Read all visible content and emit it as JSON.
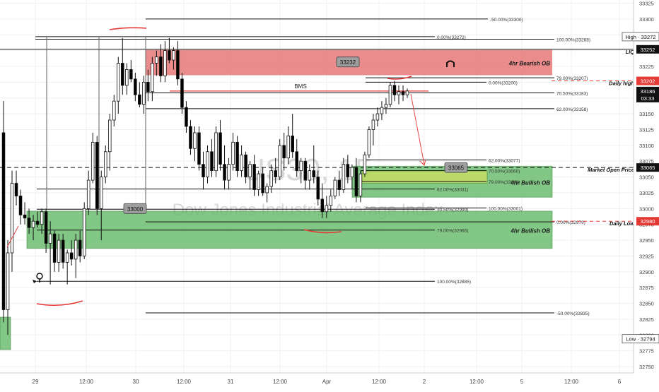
{
  "chart_data": {
    "type": "candlestick",
    "symbol_watermark": "US30, 15",
    "watermark_subtitle": "Dow Jones Industrial Average Index",
    "ylim": [
      32740,
      33330
    ],
    "y_ticks": [
      32750,
      32775,
      32800,
      32825,
      32850,
      32875,
      32900,
      32925,
      32950,
      32975,
      33000,
      33025,
      33050,
      33075,
      33100,
      33125,
      33150,
      33175,
      33200,
      33225,
      33250,
      33275,
      33300,
      33325
    ],
    "x_ticks": [
      "29",
      "12:00",
      "30",
      "12:00",
      "31",
      "12:00",
      "Apr",
      "12:00",
      "2",
      "12:00",
      "5",
      "12:00",
      "6"
    ],
    "colors": {
      "bull": "#ffffff",
      "bear": "#000000",
      "bearish_ob_fill": "#e57373",
      "bullish_ob_fill": "#66bb6a",
      "inner_zone_fill": "#c7dd63",
      "red_line": "#e53935",
      "price_label_bg": "#ffffff"
    },
    "price_axis_labels": [
      {
        "price": 33272,
        "text": "High · 33272",
        "style": "light"
      },
      {
        "price": 33252,
        "text": "33252",
        "style": "dark"
      },
      {
        "price": 33202,
        "text": "33202",
        "style": "red"
      },
      {
        "price": 33186,
        "text": "33186",
        "sub": "03:33",
        "style": "dark"
      },
      {
        "price": 33065,
        "text": "33065",
        "style": "dark"
      },
      {
        "price": 32980,
        "text": "32980",
        "style": "red"
      },
      {
        "price": 32794,
        "text": "Low · 32794",
        "style": "light"
      }
    ],
    "zones": [
      {
        "label": "4hr Bearish OB",
        "top": 33251,
        "bottom": 33211,
        "kind": "bearish"
      },
      {
        "label": "4hr Bullish OB",
        "top": 33067,
        "bottom": 33018,
        "kind": "bullish"
      },
      {
        "label": "4hr Bullish OB",
        "top": 32996,
        "bottom": 32937,
        "kind": "bullish"
      },
      {
        "label": "",
        "top": 33060,
        "bottom": 33040,
        "kind": "inner"
      }
    ],
    "fib_labels": [
      {
        "price": 33300,
        "text": "-50.00%(33300)"
      },
      {
        "price": 33272,
        "text": "0.00%(33272)"
      },
      {
        "price": 33268,
        "text": "100.00%(33268)"
      },
      {
        "price": 33207,
        "text": "79.00%(33207)"
      },
      {
        "price": 33200,
        "text": "0.00%(33200)"
      },
      {
        "price": 33183,
        "text": "70.50%(33183)"
      },
      {
        "price": 33158,
        "text": "62.00%(33158)"
      },
      {
        "price": 33077,
        "text": "62.00%(33077)"
      },
      {
        "price": 33060,
        "text": "70.50%(33060)"
      },
      {
        "price": 33043,
        "text": "79.00%(33043)"
      },
      {
        "price": 33031,
        "text": "62.00%(33031)"
      },
      {
        "price": 33001,
        "text": "100.00%(33001)"
      },
      {
        "price": 32999,
        "text": "70.50%(32999)"
      },
      {
        "price": 32979,
        "text": "0.00%(32979)"
      },
      {
        "price": 32966,
        "text": "79.00%(32966)"
      },
      {
        "price": 32885,
        "text": "100.00%(32885)"
      },
      {
        "price": 32835,
        "text": "-50.00%(32835)"
      }
    ],
    "level_tags": [
      {
        "text": "LIQ",
        "price": 33252
      },
      {
        "text": "Daily high",
        "price": 33202
      },
      {
        "text": "Market Open Price",
        "price": 33065
      },
      {
        "text": "Daily Low",
        "price": 32980
      }
    ],
    "callouts": [
      {
        "text": "33232",
        "price": 33232
      },
      {
        "text": "33065",
        "price": 33065
      },
      {
        "text": "33000",
        "price": 33000
      }
    ],
    "annotations": [
      "BMS"
    ],
    "candles": [
      {
        "o": 33120,
        "h": 33170,
        "l": 32820,
        "c": 32840
      },
      {
        "o": 32840,
        "h": 32950,
        "l": 32800,
        "c": 32930
      },
      {
        "o": 32930,
        "h": 33060,
        "l": 32900,
        "c": 33040
      },
      {
        "o": 33040,
        "h": 33060,
        "l": 33005,
        "c": 33020
      },
      {
        "o": 33020,
        "h": 33030,
        "l": 32975,
        "c": 32990
      },
      {
        "o": 32990,
        "h": 33010,
        "l": 32975,
        "c": 32985
      },
      {
        "o": 32985,
        "h": 33000,
        "l": 32960,
        "c": 32970
      },
      {
        "o": 32970,
        "h": 32990,
        "l": 32950,
        "c": 32980
      },
      {
        "o": 32980,
        "h": 32995,
        "l": 32970,
        "c": 32975
      },
      {
        "o": 32975,
        "h": 33000,
        "l": 32960,
        "c": 32995
      },
      {
        "o": 32995,
        "h": 33000,
        "l": 32930,
        "c": 32945
      },
      {
        "o": 32945,
        "h": 32980,
        "l": 32880,
        "c": 32960
      },
      {
        "o": 32960,
        "h": 32965,
        "l": 32900,
        "c": 32915
      },
      {
        "o": 32915,
        "h": 32960,
        "l": 32900,
        "c": 32950
      },
      {
        "o": 32950,
        "h": 32960,
        "l": 32905,
        "c": 32915
      },
      {
        "o": 32915,
        "h": 32935,
        "l": 32880,
        "c": 32930
      },
      {
        "o": 32930,
        "h": 32950,
        "l": 32910,
        "c": 32920
      },
      {
        "o": 32920,
        "h": 32960,
        "l": 32890,
        "c": 32950
      },
      {
        "o": 32950,
        "h": 32965,
        "l": 32915,
        "c": 32925
      },
      {
        "o": 32925,
        "h": 33010,
        "l": 32920,
        "c": 33000
      },
      {
        "o": 33000,
        "h": 33060,
        "l": 32990,
        "c": 33045
      },
      {
        "o": 33045,
        "h": 33120,
        "l": 33040,
        "c": 33105
      },
      {
        "o": 33105,
        "h": 33115,
        "l": 32990,
        "c": 33000
      },
      {
        "o": 33000,
        "h": 33060,
        "l": 32950,
        "c": 33050
      },
      {
        "o": 33050,
        "h": 33100,
        "l": 33040,
        "c": 33090
      },
      {
        "o": 33090,
        "h": 33150,
        "l": 33060,
        "c": 33140
      },
      {
        "o": 33140,
        "h": 33180,
        "l": 33130,
        "c": 33170
      },
      {
        "o": 33170,
        "h": 33240,
        "l": 33150,
        "c": 33230
      },
      {
        "o": 33230,
        "h": 33270,
        "l": 33180,
        "c": 33195
      },
      {
        "o": 33195,
        "h": 33230,
        "l": 33180,
        "c": 33220
      },
      {
        "o": 33220,
        "h": 33235,
        "l": 33200,
        "c": 33205
      },
      {
        "o": 33205,
        "h": 33215,
        "l": 33170,
        "c": 33180
      },
      {
        "o": 33180,
        "h": 33200,
        "l": 33160,
        "c": 33165
      },
      {
        "o": 33165,
        "h": 33210,
        "l": 33150,
        "c": 33200
      },
      {
        "o": 33200,
        "h": 33220,
        "l": 33170,
        "c": 33185
      },
      {
        "o": 33185,
        "h": 33240,
        "l": 33170,
        "c": 33230
      },
      {
        "o": 33230,
        "h": 33250,
        "l": 33210,
        "c": 33240
      },
      {
        "o": 33240,
        "h": 33260,
        "l": 33200,
        "c": 33210
      },
      {
        "o": 33210,
        "h": 33265,
        "l": 33200,
        "c": 33250
      },
      {
        "o": 33250,
        "h": 33270,
        "l": 33230,
        "c": 33235
      },
      {
        "o": 33235,
        "h": 33255,
        "l": 33220,
        "c": 33250
      },
      {
        "o": 33250,
        "h": 33265,
        "l": 33195,
        "c": 33205
      },
      {
        "o": 33205,
        "h": 33215,
        "l": 33150,
        "c": 33160
      },
      {
        "o": 33160,
        "h": 33170,
        "l": 33120,
        "c": 33130
      },
      {
        "o": 33130,
        "h": 33140,
        "l": 33085,
        "c": 33095
      },
      {
        "o": 33095,
        "h": 33130,
        "l": 33075,
        "c": 33120
      },
      {
        "o": 33120,
        "h": 33130,
        "l": 33060,
        "c": 33070
      },
      {
        "o": 33070,
        "h": 33090,
        "l": 33030,
        "c": 33050
      },
      {
        "o": 33050,
        "h": 33100,
        "l": 33040,
        "c": 33090
      },
      {
        "o": 33090,
        "h": 33110,
        "l": 33050,
        "c": 33060
      },
      {
        "o": 33060,
        "h": 33130,
        "l": 33050,
        "c": 33120
      },
      {
        "o": 33120,
        "h": 33140,
        "l": 33060,
        "c": 33070
      },
      {
        "o": 33070,
        "h": 33100,
        "l": 33030,
        "c": 33045
      },
      {
        "o": 33045,
        "h": 33080,
        "l": 33030,
        "c": 33070
      },
      {
        "o": 33070,
        "h": 33120,
        "l": 33060,
        "c": 33105
      },
      {
        "o": 33105,
        "h": 33115,
        "l": 33050,
        "c": 33060
      },
      {
        "o": 33060,
        "h": 33100,
        "l": 33050,
        "c": 33085
      },
      {
        "o": 33085,
        "h": 33090,
        "l": 33040,
        "c": 33050
      },
      {
        "o": 33050,
        "h": 33075,
        "l": 33030,
        "c": 33070
      },
      {
        "o": 33070,
        "h": 33085,
        "l": 33020,
        "c": 33030
      },
      {
        "o": 33030,
        "h": 33060,
        "l": 33020,
        "c": 33055
      },
      {
        "o": 33055,
        "h": 33065,
        "l": 33020,
        "c": 33025
      },
      {
        "o": 33025,
        "h": 33040,
        "l": 33010,
        "c": 33035
      },
      {
        "o": 33035,
        "h": 33070,
        "l": 33025,
        "c": 33060
      },
      {
        "o": 33060,
        "h": 33080,
        "l": 33040,
        "c": 33050
      },
      {
        "o": 33050,
        "h": 33110,
        "l": 33045,
        "c": 33100
      },
      {
        "o": 33100,
        "h": 33120,
        "l": 33060,
        "c": 33080
      },
      {
        "o": 33080,
        "h": 33130,
        "l": 33070,
        "c": 33115
      },
      {
        "o": 33115,
        "h": 33150,
        "l": 33080,
        "c": 33090
      },
      {
        "o": 33090,
        "h": 33110,
        "l": 33050,
        "c": 33060
      },
      {
        "o": 33060,
        "h": 33080,
        "l": 33040,
        "c": 33075
      },
      {
        "o": 33075,
        "h": 33080,
        "l": 33030,
        "c": 33045
      },
      {
        "o": 33045,
        "h": 33070,
        "l": 33030,
        "c": 33060
      },
      {
        "o": 33060,
        "h": 33100,
        "l": 33040,
        "c": 33050
      },
      {
        "o": 33050,
        "h": 33060,
        "l": 33005,
        "c": 33015
      },
      {
        "o": 33015,
        "h": 33040,
        "l": 32985,
        "c": 32995
      },
      {
        "o": 32995,
        "h": 33020,
        "l": 32985,
        "c": 33005
      },
      {
        "o": 33005,
        "h": 33030,
        "l": 32995,
        "c": 33020
      },
      {
        "o": 33020,
        "h": 33050,
        "l": 33015,
        "c": 33045
      },
      {
        "o": 33045,
        "h": 33060,
        "l": 33020,
        "c": 33030
      },
      {
        "o": 33030,
        "h": 33080,
        "l": 33025,
        "c": 33070
      },
      {
        "o": 33070,
        "h": 33085,
        "l": 33040,
        "c": 33050
      },
      {
        "o": 33050,
        "h": 33070,
        "l": 33030,
        "c": 33065
      },
      {
        "o": 33065,
        "h": 33080,
        "l": 33010,
        "c": 33020
      },
      {
        "o": 33020,
        "h": 33060,
        "l": 33010,
        "c": 33055
      },
      {
        "o": 33055,
        "h": 33090,
        "l": 33050,
        "c": 33085
      },
      {
        "o": 33085,
        "h": 33130,
        "l": 33080,
        "c": 33125
      },
      {
        "o": 33125,
        "h": 33150,
        "l": 33100,
        "c": 33140
      },
      {
        "o": 33140,
        "h": 33160,
        "l": 33130,
        "c": 33150
      },
      {
        "o": 33150,
        "h": 33170,
        "l": 33140,
        "c": 33160
      },
      {
        "o": 33160,
        "h": 33175,
        "l": 33150,
        "c": 33165
      },
      {
        "o": 33165,
        "h": 33200,
        "l": 33160,
        "c": 33195
      },
      {
        "o": 33195,
        "h": 33202,
        "l": 33170,
        "c": 33180
      },
      {
        "o": 33180,
        "h": 33195,
        "l": 33165,
        "c": 33185
      },
      {
        "o": 33185,
        "h": 33195,
        "l": 33170,
        "c": 33180
      },
      {
        "o": 33180,
        "h": 33190,
        "l": 33175,
        "c": 33186
      }
    ]
  }
}
